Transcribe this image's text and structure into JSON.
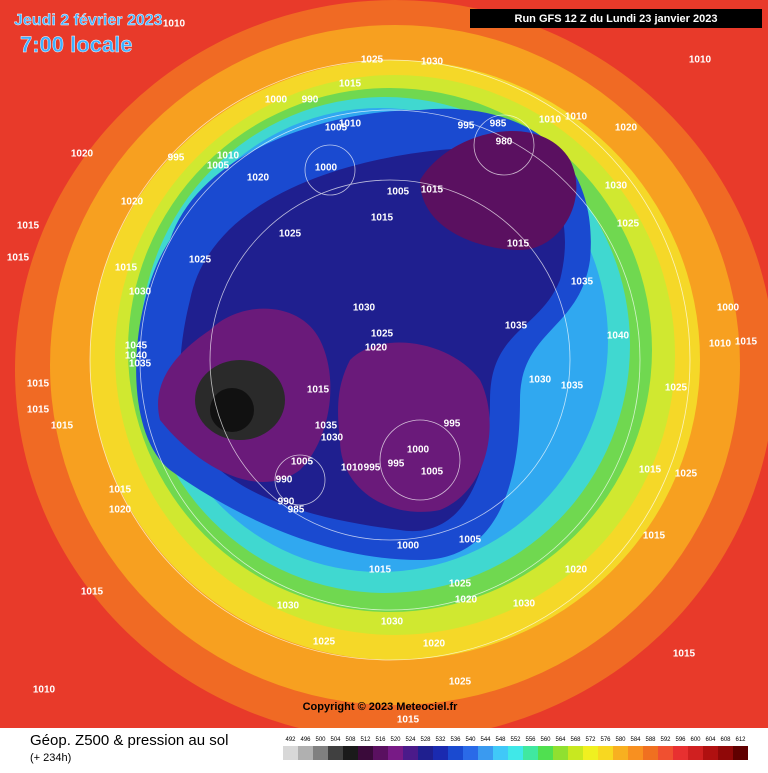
{
  "header": {
    "date": "Jeudi 2 février 2023",
    "time": "7:00 locale",
    "run": "Run GFS 12 Z du Lundi 23 janvier 2023"
  },
  "footer": {
    "title": "Géop. Z500 & pression au sol",
    "lead": "(+ 234h)",
    "copyright": "Copyright © 2023 Meteociel.fr"
  },
  "scale": {
    "labels": [
      492,
      496,
      500,
      504,
      508,
      512,
      516,
      520,
      524,
      528,
      532,
      536,
      540,
      544,
      548,
      552,
      556,
      560,
      564,
      568,
      572,
      576,
      580,
      584,
      588,
      592,
      596,
      600,
      604,
      608,
      612
    ],
    "colors": [
      "#d8d8d8",
      "#b0b0b0",
      "#808080",
      "#404040",
      "#1a1a1a",
      "#3a0a3a",
      "#5a1060",
      "#781a86",
      "#4b1a8a",
      "#1f1f8f",
      "#1a2ab0",
      "#1a4ad0",
      "#2a6ae8",
      "#3a9af0",
      "#40c8f8",
      "#40e8e8",
      "#40e8a0",
      "#50e050",
      "#90e030",
      "#c8e820",
      "#f0f020",
      "#f8d820",
      "#f8b020",
      "#f89020",
      "#f07020",
      "#f05030",
      "#e83030",
      "#d02020",
      "#b01010",
      "#900808",
      "#600000"
    ]
  },
  "isobar_labels": [
    1010,
    1025,
    1030,
    1010,
    1015,
    1000,
    990,
    1005,
    1010,
    995,
    985,
    980,
    1010,
    1010,
    1020,
    995,
    1010,
    1005,
    1020,
    1000,
    1005,
    1015,
    1030,
    1020,
    1020,
    1015,
    1015,
    1025,
    1015,
    1025,
    1015,
    1025,
    1015,
    1035,
    1030,
    1030,
    1035,
    1000,
    1025,
    1020,
    1040,
    1045,
    1040,
    1035,
    1010,
    1015,
    1030,
    1035,
    1015,
    1015,
    1025,
    1015,
    1035,
    995,
    1030,
    1015,
    1000,
    1005,
    1010,
    995,
    995,
    1005,
    990,
    1015,
    1025,
    1015,
    990,
    985,
    1020,
    1005,
    1000,
    1015,
    1020,
    1025,
    1020,
    1030,
    1015,
    1015,
    1030,
    1030,
    1025,
    1020,
    1015,
    1025,
    1010,
    1015
  ]
}
